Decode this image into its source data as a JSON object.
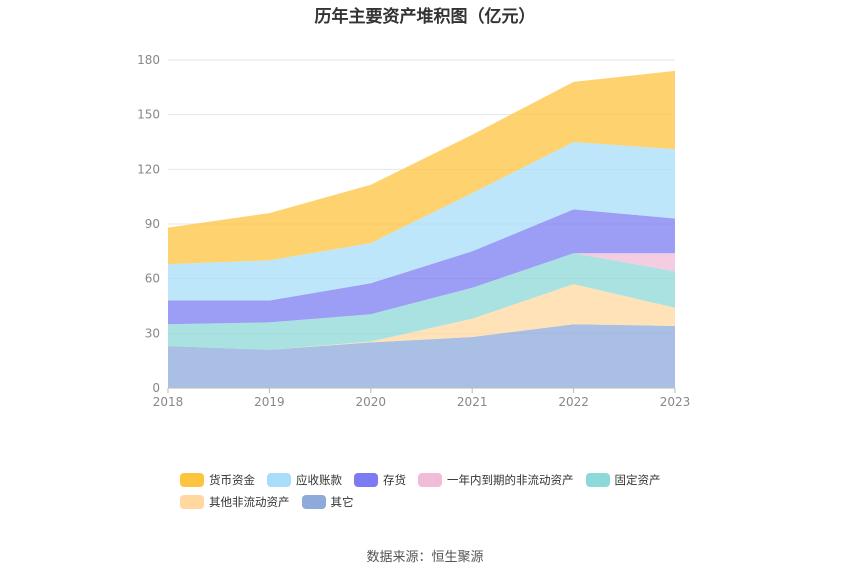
{
  "chart_data": {
    "type": "area",
    "title": "历年主要资产堆积图（亿元）",
    "categories": [
      "2018",
      "2019",
      "2020",
      "2021",
      "2022",
      "2023"
    ],
    "ylim": [
      0,
      180
    ],
    "yticks": [
      "0",
      "30",
      "60",
      "90",
      "120",
      "150",
      "180"
    ],
    "grid": true,
    "legend_position": "bottom",
    "series": [
      {
        "name": "其它",
        "color": "#8eaadb",
        "values": [
          23,
          21,
          25,
          28,
          35,
          34
        ]
      },
      {
        "name": "其他非流动资产",
        "color": "#ffd8a0",
        "values": [
          0,
          0,
          0.5,
          10,
          22,
          10
        ]
      },
      {
        "name": "固定资产",
        "color": "#8dd8d8",
        "values": [
          12,
          15,
          15,
          17,
          17,
          20
        ]
      },
      {
        "name": "一年内到期的非流动资产",
        "color": "#f0bcd8",
        "values": [
          0,
          0,
          0,
          0,
          0,
          10
        ]
      },
      {
        "name": "存货",
        "color": "#7b7cf2",
        "values": [
          13,
          12,
          17,
          20,
          24,
          19
        ]
      },
      {
        "name": "应收账款",
        "color": "#a8defa",
        "values": [
          20,
          22,
          22,
          32,
          37,
          38
        ]
      },
      {
        "name": "货币资金",
        "color": "#fdc43f",
        "values": [
          20,
          26,
          32,
          32,
          33,
          43
        ]
      }
    ],
    "legend_order": [
      "货币资金",
      "应收账款",
      "存货",
      "一年内到期的非流动资产",
      "固定资产",
      "其他非流动资产",
      "其它"
    ]
  },
  "source_text": "数据来源：恒生聚源"
}
